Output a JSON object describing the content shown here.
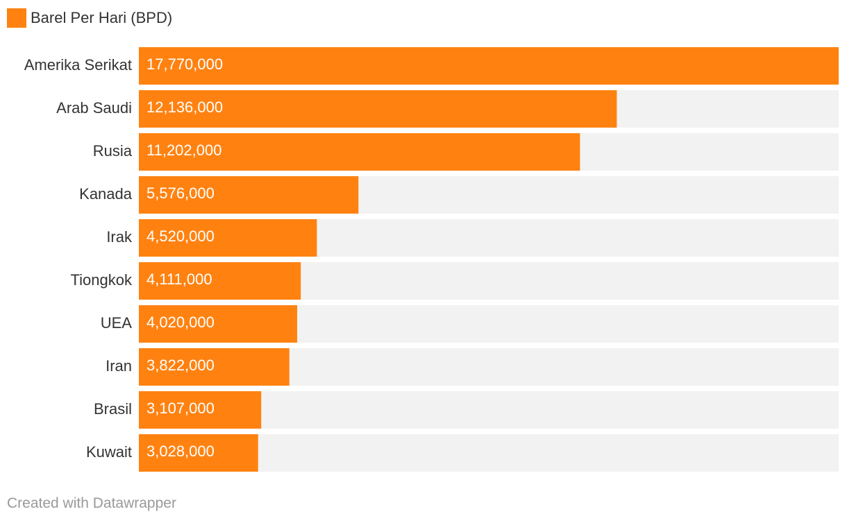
{
  "legend": {
    "label": "Barel Per Hari (BPD)",
    "color": "#FF8211"
  },
  "chart_data": {
    "type": "bar",
    "orientation": "horizontal",
    "categories": [
      "Amerika Serikat",
      "Arab Saudi",
      "Rusia",
      "Kanada",
      "Irak",
      "Tiongkok",
      "UEA",
      "Iran",
      "Brasil",
      "Kuwait"
    ],
    "series": [
      {
        "name": "Barel Per Hari (BPD)",
        "values": [
          17770000,
          12136000,
          11202000,
          5576000,
          4520000,
          4111000,
          4020000,
          3822000,
          3107000,
          3028000
        ],
        "labels": [
          "17,770,000",
          "12,136,000",
          "11,202,000",
          "5,576,000",
          "4,520,000",
          "4,111,000",
          "4,020,000",
          "3,822,000",
          "3,107,000",
          "3,028,000"
        ]
      }
    ],
    "xlim": [
      0,
      17770000
    ],
    "bar_color": "#FF8211",
    "track_color": "#F2F2F2",
    "label_color": "#333333",
    "value_label_color": "#FFFFFF"
  },
  "footer": {
    "credit": "Created with Datawrapper"
  }
}
